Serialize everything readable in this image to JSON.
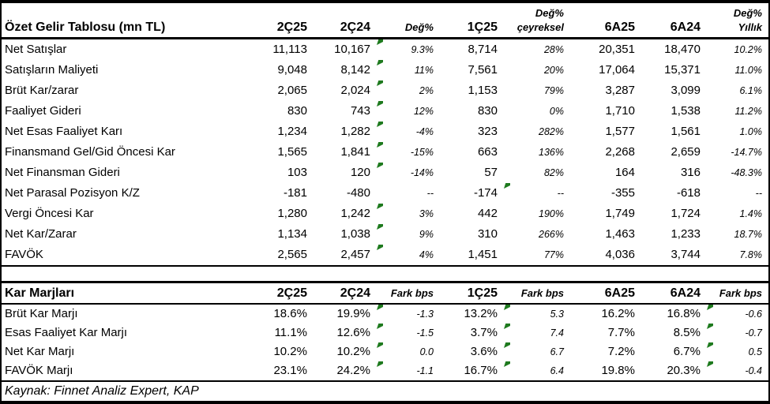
{
  "colors": {
    "flag_green": "#1e7a1e",
    "border_black": "#000000",
    "background": "#ffffff",
    "text": "#000000"
  },
  "table1": {
    "title": "Özet Gelir Tablosu (mn TL)",
    "columns": [
      {
        "l1": "",
        "l2": "2Ç25",
        "italic": false
      },
      {
        "l1": "",
        "l2": "2Ç24",
        "italic": false
      },
      {
        "l1": "",
        "l2": "Değ%",
        "italic": true
      },
      {
        "l1": "",
        "l2": "1Ç25",
        "italic": false
      },
      {
        "l1": "Değ%",
        "l2": "çeyreksel",
        "italic": true
      },
      {
        "l1": "",
        "l2": "6A25",
        "italic": false
      },
      {
        "l1": "",
        "l2": "6A24",
        "italic": false
      },
      {
        "l1": "Değ%",
        "l2": "Yıllık",
        "italic": true
      }
    ],
    "rows": [
      {
        "label": "Net Satışlar",
        "values": [
          "11,113",
          "10,167",
          "9.3%",
          "8,714",
          "28%",
          "20,351",
          "18,470",
          "10.2%"
        ],
        "flags": [
          2
        ]
      },
      {
        "label": "Satışların Maliyeti",
        "values": [
          "9,048",
          "8,142",
          "11%",
          "7,561",
          "20%",
          "17,064",
          "15,371",
          "11.0%"
        ],
        "flags": [
          2
        ]
      },
      {
        "label": "Brüt Kar/zarar",
        "values": [
          "2,065",
          "2,024",
          "2%",
          "1,153",
          "79%",
          "3,287",
          "3,099",
          "6.1%"
        ],
        "flags": [
          2
        ]
      },
      {
        "label": "Faaliyet Gideri",
        "values": [
          "830",
          "743",
          "12%",
          "830",
          "0%",
          "1,710",
          "1,538",
          "11.2%"
        ],
        "flags": [
          2
        ]
      },
      {
        "label": "Net Esas Faaliyet Karı",
        "values": [
          "1,234",
          "1,282",
          "-4%",
          "323",
          "282%",
          "1,577",
          "1,561",
          "1.0%"
        ],
        "flags": [
          2
        ]
      },
      {
        "label": "Finansmand Gel/Gid Öncesi Kar",
        "values": [
          "1,565",
          "1,841",
          "-15%",
          "663",
          "136%",
          "2,268",
          "2,659",
          "-14.7%"
        ],
        "flags": [
          2
        ]
      },
      {
        "label": "Net Finansman Gideri",
        "values": [
          "103",
          "120",
          "-14%",
          "57",
          "82%",
          "164",
          "316",
          "-48.3%"
        ],
        "flags": [
          2
        ]
      },
      {
        "label": "Net Parasal Pozisyon K/Z",
        "values": [
          "-181",
          "-480",
          "--",
          "-174",
          "--",
          "-355",
          "-618",
          "--"
        ],
        "flags": [
          4
        ]
      },
      {
        "label": "Vergi Öncesi Kar",
        "values": [
          "1,280",
          "1,242",
          "3%",
          "442",
          "190%",
          "1,749",
          "1,724",
          "1.4%"
        ],
        "flags": [
          2
        ]
      },
      {
        "label": "Net Kar/Zarar",
        "values": [
          "1,134",
          "1,038",
          "9%",
          "310",
          "266%",
          "1,463",
          "1,233",
          "18.7%"
        ],
        "flags": [
          2
        ]
      },
      {
        "label": "FAVÖK",
        "values": [
          "2,565",
          "2,457",
          "4%",
          "1,451",
          "77%",
          "4,036",
          "3,744",
          "7.8%"
        ],
        "flags": [
          2
        ]
      }
    ]
  },
  "table2": {
    "title": "Kar Marjları",
    "columns": [
      {
        "l1": "",
        "l2": "2Ç25",
        "italic": false
      },
      {
        "l1": "",
        "l2": "2Ç24",
        "italic": false
      },
      {
        "l1": "",
        "l2": "Fark bps",
        "italic": true
      },
      {
        "l1": "",
        "l2": "1Ç25",
        "italic": false
      },
      {
        "l1": "",
        "l2": "Fark bps",
        "italic": true
      },
      {
        "l1": "",
        "l2": "6A25",
        "italic": false
      },
      {
        "l1": "",
        "l2": "6A24",
        "italic": false
      },
      {
        "l1": "",
        "l2": "Fark bps",
        "italic": true
      }
    ],
    "rows": [
      {
        "label": "Brüt Kar Marjı",
        "values": [
          "18.6%",
          "19.9%",
          "-1.3",
          "13.2%",
          "5.3",
          "16.2%",
          "16.8%",
          "-0.6"
        ],
        "flags": [
          2,
          4,
          7
        ]
      },
      {
        "label": "Esas Faaliyet Kar Marjı",
        "values": [
          "11.1%",
          "12.6%",
          "-1.5",
          "3.7%",
          "7.4",
          "7.7%",
          "8.5%",
          "-0.7"
        ],
        "flags": [
          2,
          4,
          7
        ]
      },
      {
        "label": "Net Kar Marjı",
        "values": [
          "10.2%",
          "10.2%",
          "0.0",
          "3.6%",
          "6.7",
          "7.2%",
          "6.7%",
          "0.5"
        ],
        "flags": [
          2,
          4,
          7
        ]
      },
      {
        "label": "FAVÖK Marjı",
        "values": [
          "23.1%",
          "24.2%",
          "-1.1",
          "16.7%",
          "6.4",
          "19.8%",
          "20.3%",
          "-0.4"
        ],
        "flags": [
          2,
          4,
          7
        ]
      }
    ]
  },
  "footer": {
    "source": "Kaynak: Finnet Analiz Expert, KAP"
  }
}
